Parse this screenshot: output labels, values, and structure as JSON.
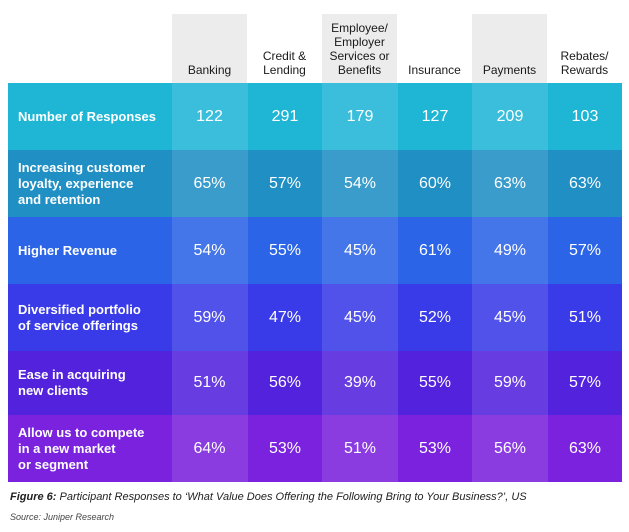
{
  "chart_data": {
    "type": "table",
    "columns": [
      "Banking",
      "Credit & Lending",
      "Employee/ Employer Services or Benefits",
      "Insurance",
      "Payments",
      "Rebates/ Rewards"
    ],
    "column_lines": [
      [
        "Banking"
      ],
      [
        "Credit &",
        "Lending"
      ],
      [
        "Employee/",
        "Employer",
        "Services or",
        "Benefits"
      ],
      [
        "Insurance"
      ],
      [
        "Payments"
      ],
      [
        "Rebates/",
        "Rewards"
      ]
    ],
    "shaded_columns": [
      0,
      2,
      4
    ],
    "rows": [
      {
        "label_lines": [
          "Number of Responses"
        ],
        "color": "#1fb6d6",
        "values": [
          "122",
          "291",
          "179",
          "127",
          "209",
          "103"
        ]
      },
      {
        "label_lines": [
          "Increasing customer",
          "loyalty, experience",
          "and retention"
        ],
        "color": "#1f8fc4",
        "values": [
          "65%",
          "57%",
          "54%",
          "60%",
          "63%",
          "63%"
        ]
      },
      {
        "label_lines": [
          "Higher Revenue"
        ],
        "color": "#2b64e6",
        "values": [
          "54%",
          "55%",
          "45%",
          "61%",
          "49%",
          "57%"
        ]
      },
      {
        "label_lines": [
          "Diversified portfolio",
          "of service offerings"
        ],
        "color": "#3a3be8",
        "values": [
          "59%",
          "47%",
          "45%",
          "52%",
          "45%",
          "51%"
        ]
      },
      {
        "label_lines": [
          "Ease in acquiring",
          "new clients"
        ],
        "color": "#5322dd",
        "values": [
          "51%",
          "56%",
          "39%",
          "55%",
          "59%",
          "57%"
        ]
      },
      {
        "label_lines": [
          "Allow us to compete",
          "in a new market",
          "or segment"
        ],
        "color": "#7a22dd",
        "values": [
          "64%",
          "53%",
          "51%",
          "53%",
          "56%",
          "63%"
        ]
      }
    ]
  },
  "caption": {
    "figure_label": "Figure 6:",
    "text": " Participant Responses to ‘What Value Does Offering the Following Bring to Your Business?’, US"
  },
  "source": "Source: Juniper Research"
}
